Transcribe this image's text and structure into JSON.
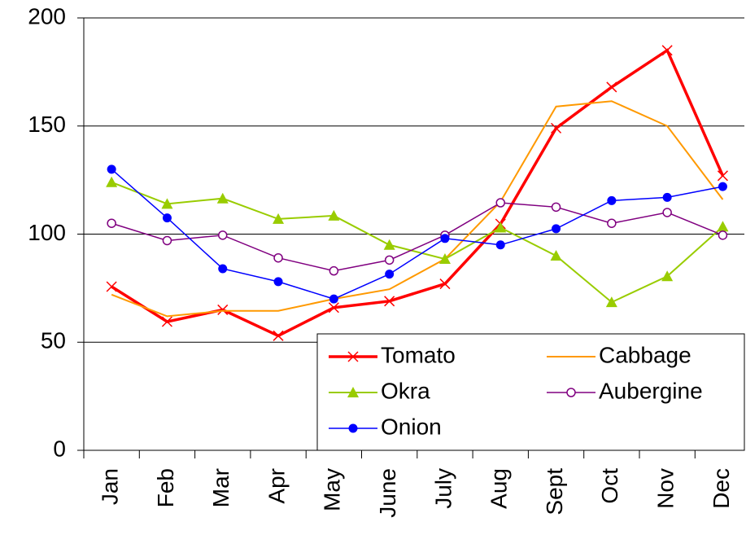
{
  "chart_data": {
    "type": "line",
    "categories": [
      "Jan",
      "Feb",
      "Mar",
      "Apr",
      "May",
      "June",
      "July",
      "Aug",
      "Sept",
      "Oct",
      "Nov",
      "Dec"
    ],
    "series": [
      {
        "name": "Tomato",
        "color": "#ff0000",
        "marker": "x",
        "line_width": 3.5,
        "values": [
          75.7,
          59.5,
          65,
          53,
          66,
          69,
          77,
          104.7,
          149,
          168,
          185,
          127
        ]
      },
      {
        "name": "Cabbage",
        "color": "#ff9900",
        "marker": "none",
        "line_width": 2,
        "values": [
          72,
          62,
          64.5,
          64.5,
          70,
          74.5,
          88.5,
          115,
          159,
          161.5,
          150,
          116
        ]
      },
      {
        "name": "Okra",
        "color": "#99cc00",
        "marker": "triangle",
        "line_width": 2,
        "values": [
          124,
          114,
          116.5,
          107,
          108.5,
          95,
          88.5,
          103,
          90,
          68.5,
          80.5,
          103.5
        ]
      },
      {
        "name": "Aubergine",
        "color": "#800080",
        "marker": "open-circle",
        "line_width": 1.5,
        "values": [
          105,
          97,
          99.5,
          89,
          83,
          88,
          99.5,
          114.5,
          112.5,
          105,
          110,
          99.5
        ]
      },
      {
        "name": "Onion",
        "color": "#0000ff",
        "marker": "circle",
        "line_width": 1.5,
        "values": [
          130,
          107.5,
          84,
          78,
          70,
          81.5,
          98,
          95,
          102.5,
          115.5,
          117,
          122
        ]
      }
    ],
    "ylim": [
      0,
      200
    ],
    "yticks": [
      0,
      50,
      100,
      150,
      200
    ],
    "grid": true,
    "legend": "lower right"
  }
}
